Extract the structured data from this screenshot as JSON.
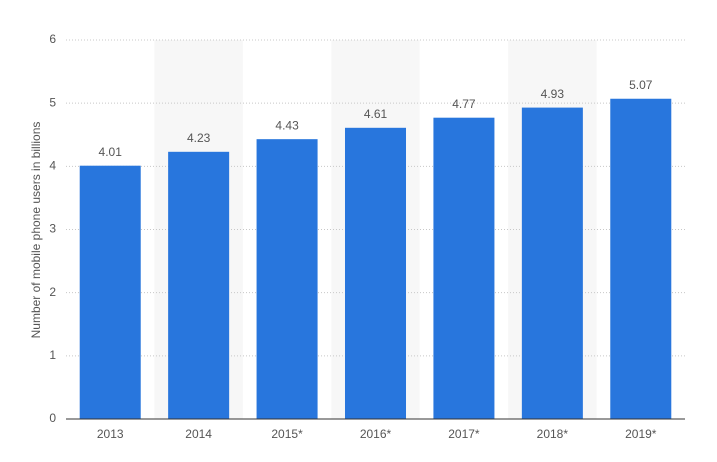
{
  "chart_data": {
    "type": "bar",
    "y_label": "Number of mobile phone users in billions",
    "categories": [
      "2013",
      "2014",
      "2015*",
      "2016*",
      "2017*",
      "2018*",
      "2019*"
    ],
    "values": [
      4.01,
      4.23,
      4.43,
      4.61,
      4.77,
      4.93,
      5.07
    ],
    "color": "#2876dd",
    "ylim": [
      0,
      6
    ],
    "yticks": [
      0,
      1,
      2,
      3,
      4,
      5,
      6
    ],
    "grid": true
  }
}
